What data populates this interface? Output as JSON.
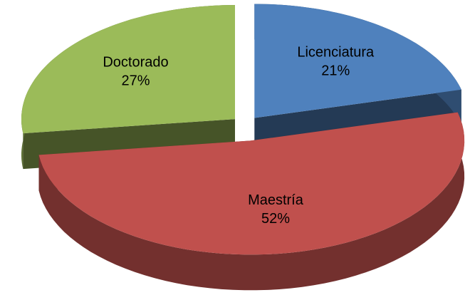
{
  "chart_data": {
    "type": "pie",
    "categories": [
      "Licenciatura",
      "Maestría",
      "Doctorado"
    ],
    "values": [
      21,
      52,
      27
    ],
    "value_labels": [
      "21%",
      "52%",
      "27%"
    ],
    "colors": [
      "#4f81bd",
      "#c0504d",
      "#9bbb59"
    ]
  }
}
